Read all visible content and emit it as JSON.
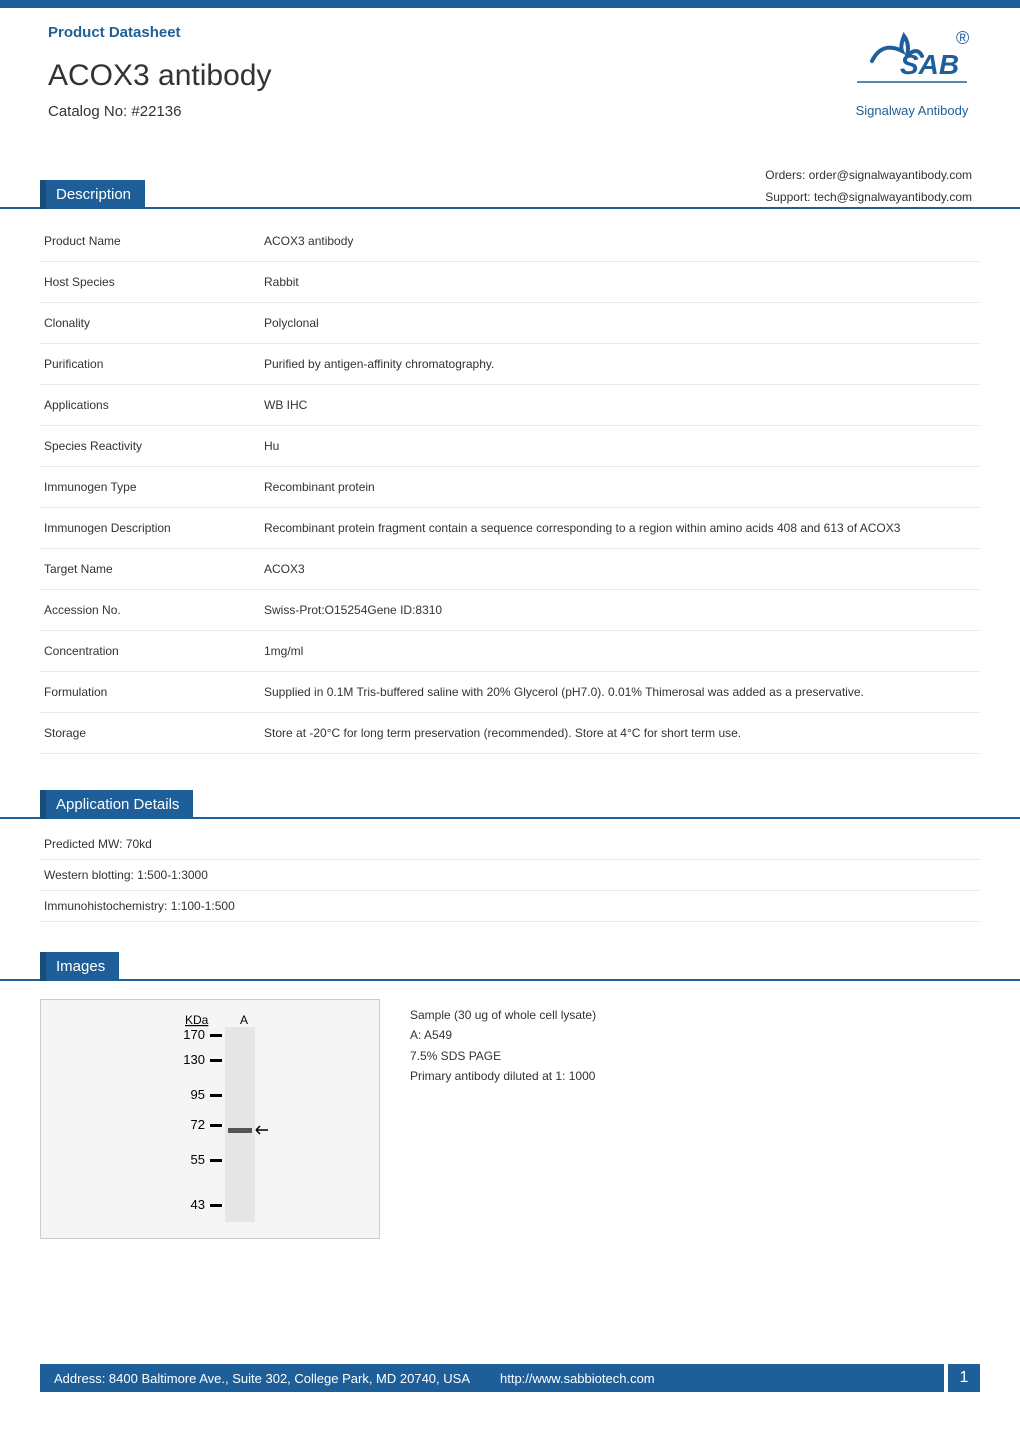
{
  "colors": {
    "brand_blue": "#1e5f99",
    "brand_blue_dark": "#1a4d7a",
    "text": "#333333",
    "border_light": "#e8e8e8",
    "white": "#ffffff",
    "image_border": "#cccccc",
    "image_bg": "#f5f5f5"
  },
  "header": {
    "datasheet_label": "Product Datasheet",
    "product_title": "ACOX3 antibody",
    "catalog_label": "Catalog No: #22136"
  },
  "logo": {
    "text": "SAB",
    "registered": "®",
    "subtext": "Signalway Antibody"
  },
  "contact": {
    "orders": "Orders: order@signalwayantibody.com",
    "support": "Support: tech@signalwayantibody.com"
  },
  "description": {
    "heading": "Description",
    "rows": [
      {
        "label": "Product Name",
        "value": "ACOX3 antibody"
      },
      {
        "label": "Host Species",
        "value": "Rabbit"
      },
      {
        "label": "Clonality",
        "value": "Polyclonal"
      },
      {
        "label": "Purification",
        "value": "Purified by antigen-affinity chromatography."
      },
      {
        "label": "Applications",
        "value": "WB IHC"
      },
      {
        "label": "Species Reactivity",
        "value": "Hu"
      },
      {
        "label": "Immunogen Type",
        "value": "Recombinant protein"
      },
      {
        "label": "Immunogen Description",
        "value": "Recombinant protein fragment contain a sequence corresponding to a region within amino acids 408 and 613 of ACOX3"
      },
      {
        "label": "Target Name",
        "value": "ACOX3"
      },
      {
        "label": "Accession No.",
        "value": "Swiss-Prot:O15254Gene ID:8310"
      },
      {
        "label": "Concentration",
        "value": "1mg/ml"
      },
      {
        "label": "Formulation",
        "value": "Supplied in 0.1M Tris-buffered saline with 20% Glycerol (pH7.0). 0.01% Thimerosal was added as a preservative."
      },
      {
        "label": "Storage",
        "value": "Store at -20°C for long term preservation (recommended). Store at 4°C for short term use."
      }
    ]
  },
  "application_details": {
    "heading": "Application Details",
    "rows": [
      "Predicted MW: 70kd",
      "Western blotting: 1:500-1:3000",
      "Immunohistochemistry: 1:100-1:500"
    ]
  },
  "images": {
    "heading": "Images",
    "blot": {
      "kda_label": "KDa",
      "lane_label": "A",
      "markers": [
        "170",
        "130",
        "95",
        "72",
        "55",
        "43"
      ],
      "band_position_index": 3
    },
    "caption_lines": [
      "Sample (30 ug of whole cell lysate)",
      "A: A549",
      "7.5% SDS PAGE",
      "Primary antibody diluted at 1: 1000"
    ]
  },
  "footer": {
    "address": "Address: 8400 Baltimore Ave., Suite 302, College Park, MD 20740, USA",
    "url": "http://www.sabbiotech.com",
    "page": "1"
  }
}
